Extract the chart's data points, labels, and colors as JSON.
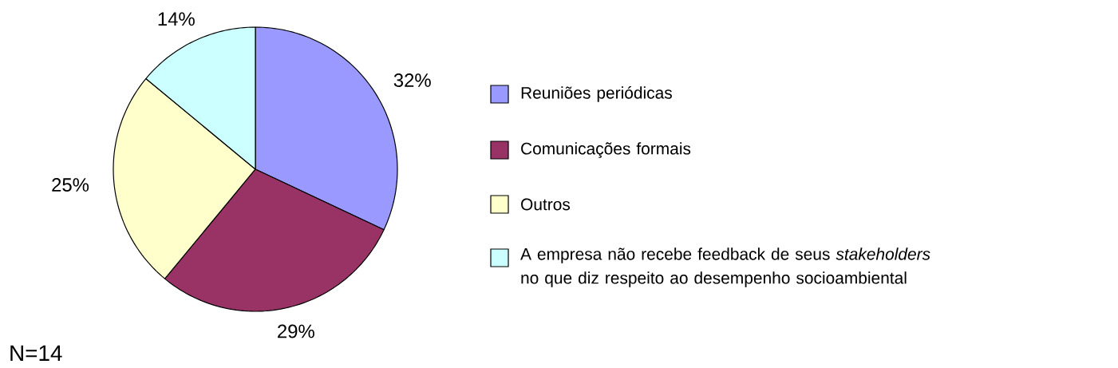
{
  "chart_data": {
    "type": "pie",
    "categories": [
      "Reuniões periódicas",
      "Comunicações formais",
      "Outros",
      "A empresa não recebe feedback de seus *stakeholders* no que diz respeito ao desempenho socioambiental"
    ],
    "values": [
      32,
      29,
      25,
      14
    ],
    "colors": [
      "#9999ff",
      "#993366",
      "#ffffcc",
      "#ccffff"
    ],
    "value_labels": [
      "32%",
      "29%",
      "25%",
      "14%"
    ],
    "legend": "right",
    "annotations": [
      "N=14"
    ]
  }
}
